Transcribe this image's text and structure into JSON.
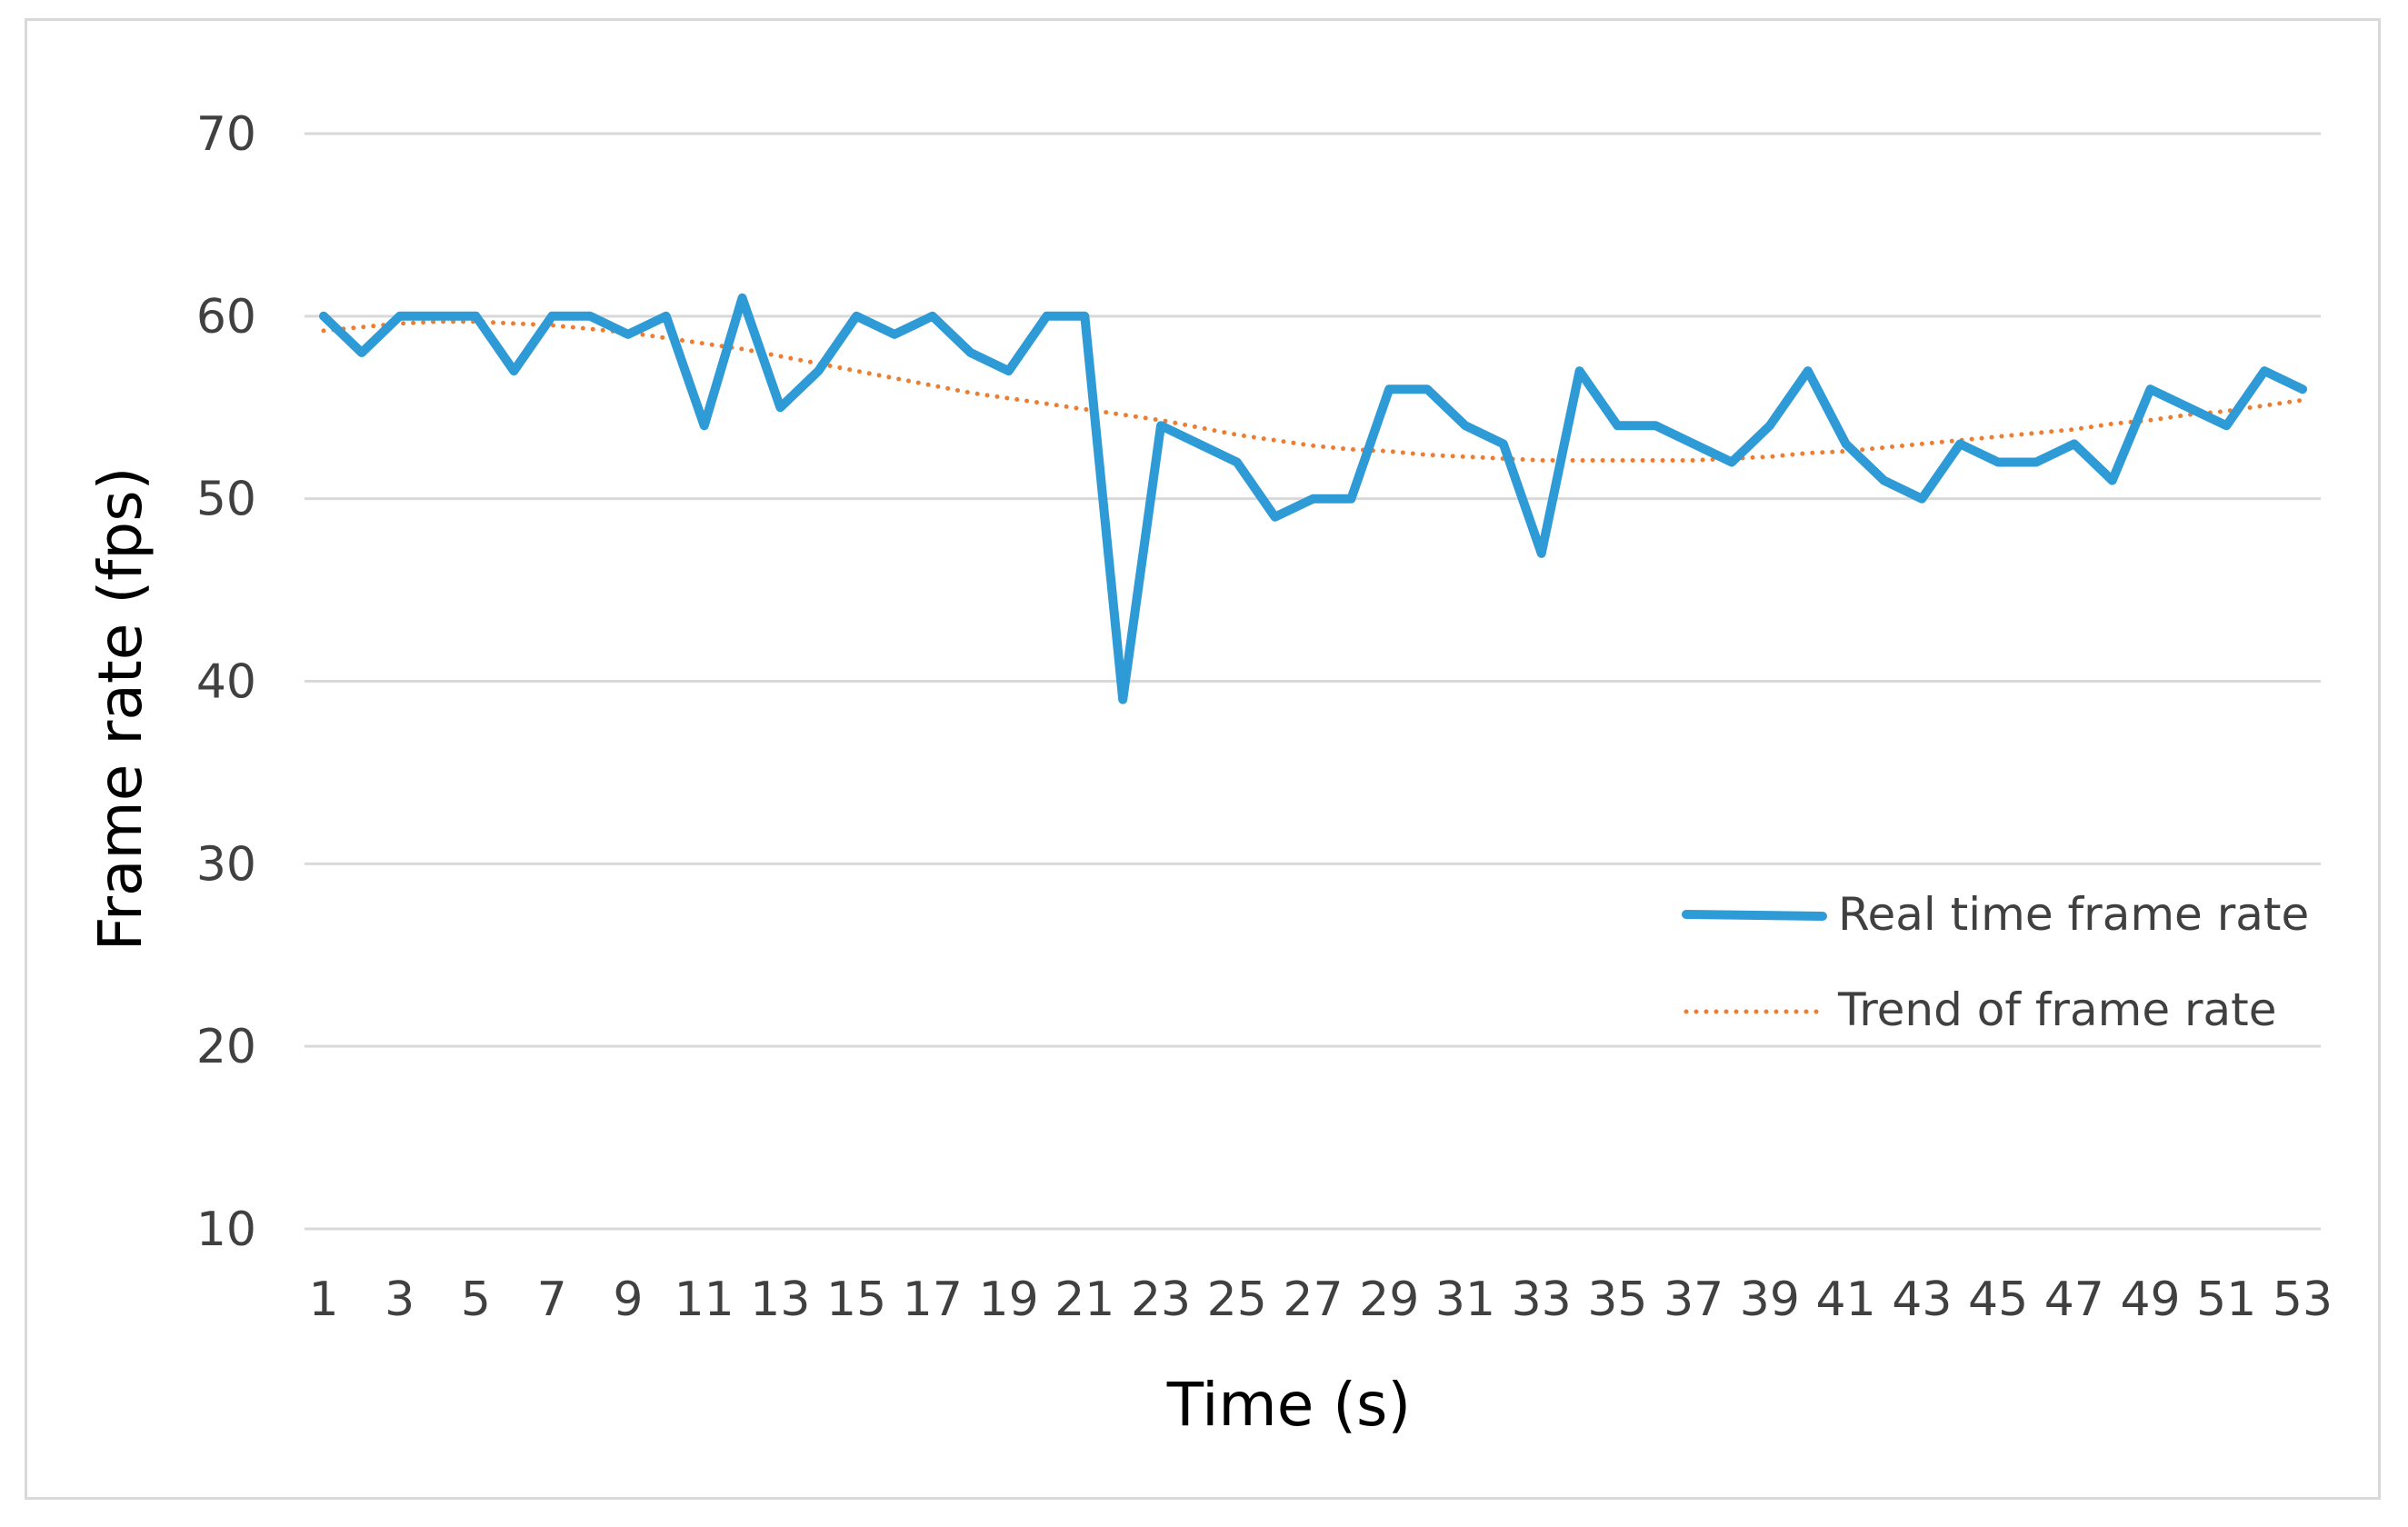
{
  "chart_data": {
    "type": "line",
    "xlabel": "Time (s)",
    "ylabel": "Frame rate (fps)",
    "ylim": [
      10,
      70
    ],
    "yticks": [
      10,
      20,
      30,
      40,
      50,
      60,
      70
    ],
    "x": [
      1,
      2,
      3,
      4,
      5,
      6,
      7,
      8,
      9,
      10,
      11,
      12,
      13,
      14,
      15,
      16,
      17,
      18,
      19,
      20,
      21,
      22,
      23,
      24,
      25,
      26,
      27,
      28,
      29,
      30,
      31,
      32,
      33,
      34,
      35,
      36,
      37,
      38,
      39,
      40,
      41,
      42,
      43,
      44,
      45,
      46,
      47,
      48,
      49,
      50,
      51,
      52,
      53
    ],
    "xtick_labels": [
      "1",
      "3",
      "5",
      "7",
      "9",
      "11",
      "13",
      "15",
      "17",
      "19",
      "21",
      "23",
      "25",
      "27",
      "29",
      "31",
      "33",
      "35",
      "37",
      "39",
      "41",
      "43",
      "45",
      "47",
      "49",
      "51",
      "53"
    ],
    "grid": true,
    "legend_position": "bottom-right",
    "series": [
      {
        "name": "Real time frame rate",
        "color": "#2e9bd6",
        "style": "solid",
        "values": [
          60,
          58,
          60,
          60,
          60,
          57,
          60,
          60,
          59,
          60,
          54,
          61,
          55,
          57,
          60,
          59,
          60,
          58,
          57,
          60,
          60,
          39,
          54,
          53,
          52,
          49,
          50,
          50,
          56,
          56,
          54,
          53,
          47,
          57,
          54,
          54,
          53,
          52,
          54,
          57,
          53,
          51,
          50,
          53,
          52,
          52,
          53,
          51,
          56,
          55,
          54,
          57,
          56
        ]
      },
      {
        "name": "Trend of frame rate",
        "color": "#ed7d31",
        "style": "dotted",
        "values": [
          59.2,
          59.4,
          59.6,
          59.7,
          59.7,
          59.6,
          59.5,
          59.3,
          59.1,
          58.8,
          58.5,
          58.2,
          57.8,
          57.4,
          57.0,
          56.6,
          56.2,
          55.8,
          55.5,
          55.2,
          54.9,
          54.6,
          54.3,
          53.9,
          53.5,
          53.2,
          52.9,
          52.7,
          52.6,
          52.4,
          52.3,
          52.2,
          52.1,
          52.1,
          52.1,
          52.1,
          52.1,
          52.2,
          52.3,
          52.5,
          52.6,
          52.8,
          53.0,
          53.2,
          53.4,
          53.6,
          53.8,
          54.1,
          54.3,
          54.6,
          54.8,
          55.1,
          55.4
        ]
      }
    ]
  }
}
